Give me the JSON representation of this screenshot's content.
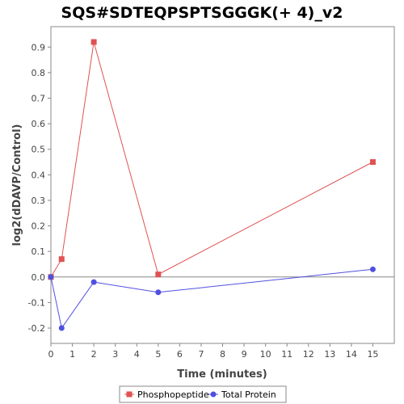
{
  "chart_data": {
    "type": "line",
    "title": "SQS#SDTEQPSPTSGGGK(+ 4)_v2",
    "xlabel": "Time (minutes)",
    "ylabel": "log2(dDAVP/Control)",
    "xlim": [
      0,
      16
    ],
    "ylim": [
      -0.26,
      0.98
    ],
    "xticks": [
      0,
      1,
      2,
      3,
      4,
      5,
      6,
      7,
      8,
      9,
      10,
      11,
      12,
      13,
      14,
      15
    ],
    "yticks": [
      -0.2,
      -0.1,
      0.0,
      0.1,
      0.2,
      0.3,
      0.4,
      0.5,
      0.6,
      0.7,
      0.8,
      0.9
    ],
    "ytick_labels": [
      "-0.2",
      "-0.1",
      "0.0",
      "0.1",
      "0.2",
      "0.3",
      "0.4",
      "0.5",
      "0.6",
      "0.7",
      "0.8",
      "0.9"
    ],
    "grid": false,
    "legend_position": "bottom",
    "series": [
      {
        "name": "Phosphopeptide",
        "marker": "square",
        "color": "#e05252",
        "x": [
          0,
          0.5,
          2,
          5,
          15
        ],
        "y": [
          0.0,
          0.07,
          0.92,
          0.01,
          0.45
        ]
      },
      {
        "name": "Total Protein",
        "marker": "circle",
        "color": "#5050e0",
        "x": [
          0,
          0.5,
          2,
          5,
          15
        ],
        "y": [
          0.0,
          -0.2,
          -0.02,
          -0.06,
          0.03
        ]
      }
    ]
  }
}
